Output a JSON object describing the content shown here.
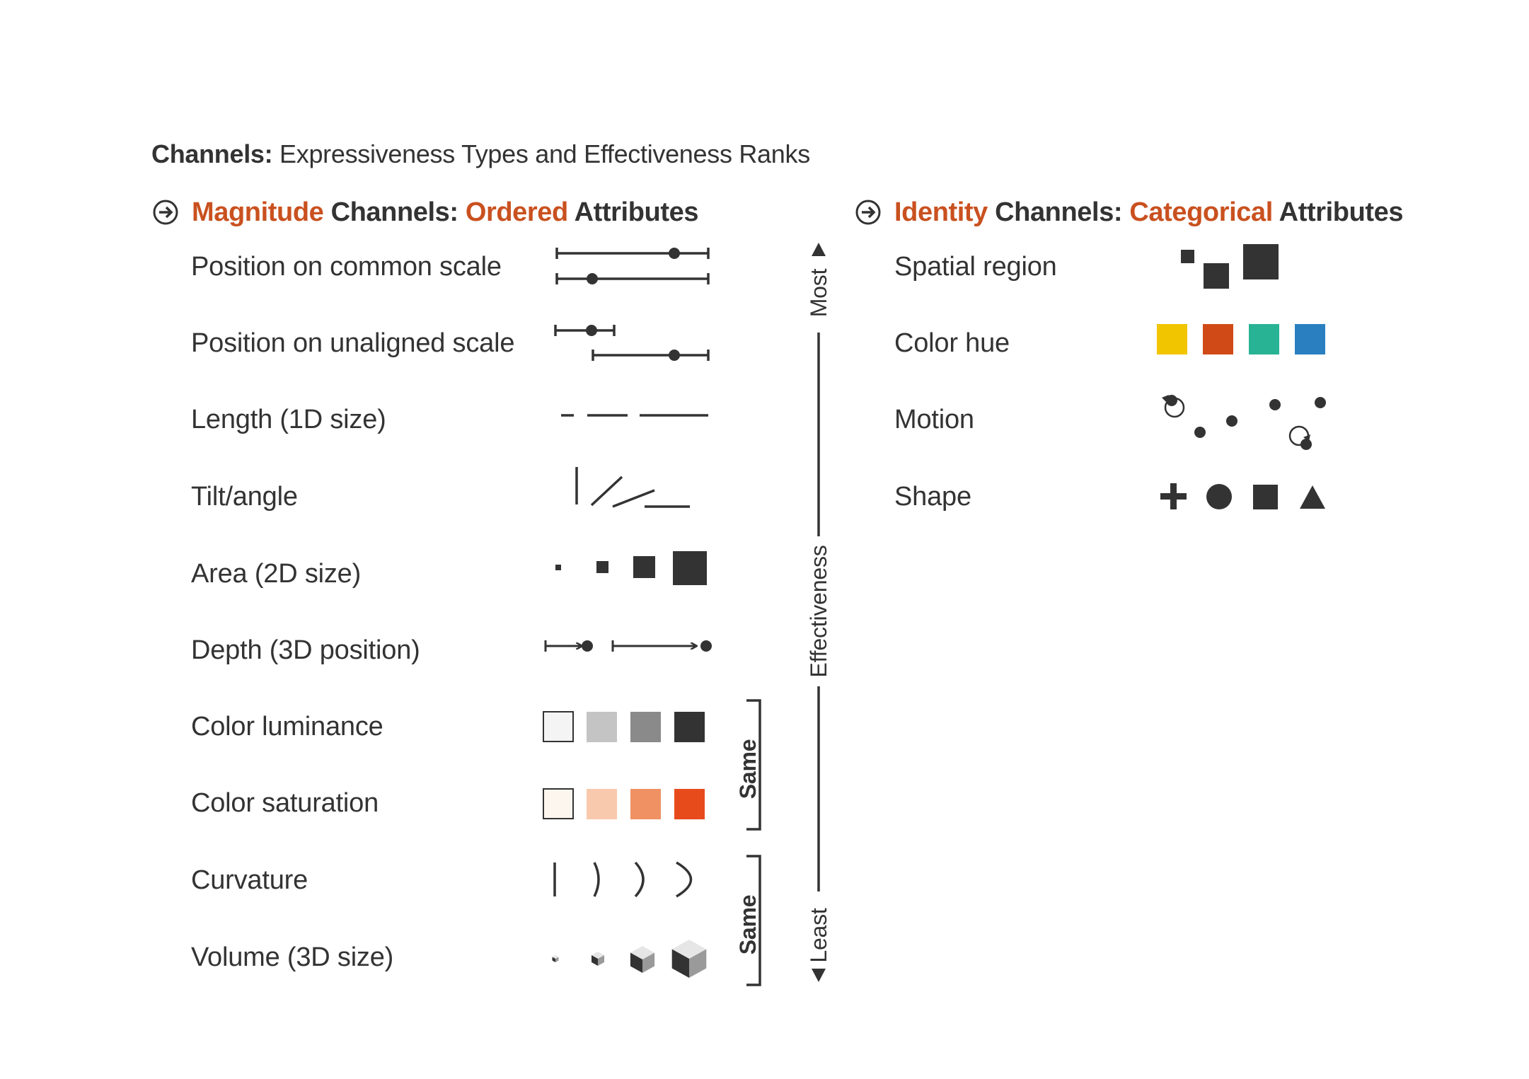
{
  "title": {
    "bold": "Channels:",
    "rest": "Expressiveness Types and Effectiveness Ranks"
  },
  "magnitude": {
    "heading": {
      "w1": "Magnitude",
      "w2": "Channels:",
      "w3": "Ordered",
      "w4": "Attributes"
    },
    "rows": [
      {
        "label": "Position on common scale"
      },
      {
        "label": "Position on unaligned scale"
      },
      {
        "label": "Length (1D size)"
      },
      {
        "label": "Tilt/angle"
      },
      {
        "label": "Area (2D size)"
      },
      {
        "label": "Depth (3D position)"
      },
      {
        "label": "Color luminance"
      },
      {
        "label": "Color saturation"
      },
      {
        "label": "Curvature"
      },
      {
        "label": "Volume (3D size)"
      }
    ]
  },
  "identity": {
    "heading": {
      "w1": "Identity",
      "w2": "Channels:",
      "w3": "Categorical",
      "w4": "Attributes"
    },
    "rows": [
      {
        "label": "Spatial region"
      },
      {
        "label": "Color hue"
      },
      {
        "label": "Motion"
      },
      {
        "label": "Shape"
      }
    ]
  },
  "effectiveness": {
    "axis_label": "Effectiveness",
    "top": "Most",
    "bottom": "Least"
  },
  "brackets": [
    {
      "label": "Same"
    },
    {
      "label": "Same"
    }
  ],
  "colors": {
    "text": "#333333",
    "accent": "#c9511f",
    "luminance": [
      "#f4f4f4",
      "#c4c4c4",
      "#8a8a8a",
      "#333333"
    ],
    "saturation": [
      "#fdf6ef",
      "#f8c9ad",
      "#ef9163",
      "#e74b1c"
    ],
    "hue": [
      "#f1c500",
      "#d04a18",
      "#27b394",
      "#2a7fc1"
    ]
  },
  "icons": [
    "arrow-circle-icon",
    "arrow-circle-icon"
  ]
}
